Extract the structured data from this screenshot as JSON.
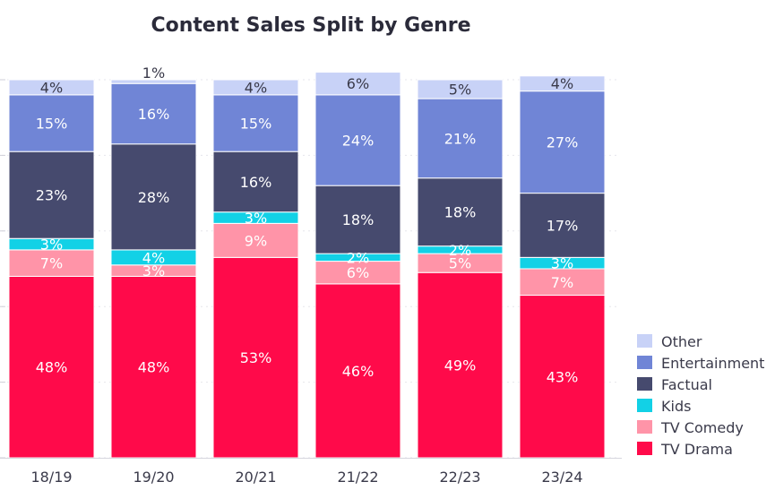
{
  "chart_data": {
    "type": "bar",
    "stacked": true,
    "title": "Content Sales Split by Genre",
    "xlabel": "",
    "ylabel": "",
    "ylim": [
      0,
      100
    ],
    "categories": [
      "18/19",
      "19/20",
      "20/21",
      "21/22",
      "22/23",
      "23/24"
    ],
    "legend_position": "bottom-right",
    "series": [
      {
        "name": "TV Drama",
        "color": "#FF0A4A",
        "values": [
          48,
          48,
          53,
          46,
          49,
          43
        ]
      },
      {
        "name": "TV Comedy",
        "color": "#FF94A8",
        "values": [
          7,
          3,
          9,
          6,
          5,
          7
        ]
      },
      {
        "name": "Kids",
        "color": "#12D1E6",
        "values": [
          3,
          4,
          3,
          2,
          2,
          3
        ]
      },
      {
        "name": "Factual",
        "color": "#464A6E",
        "values": [
          23,
          28,
          16,
          18,
          18,
          17
        ]
      },
      {
        "name": "Entertainment",
        "color": "#7085D6",
        "values": [
          15,
          16,
          15,
          24,
          21,
          27
        ]
      },
      {
        "name": "Other",
        "color": "#C8D2F7",
        "values": [
          4,
          1,
          4,
          6,
          5,
          4
        ]
      }
    ],
    "value_suffix": "%"
  }
}
